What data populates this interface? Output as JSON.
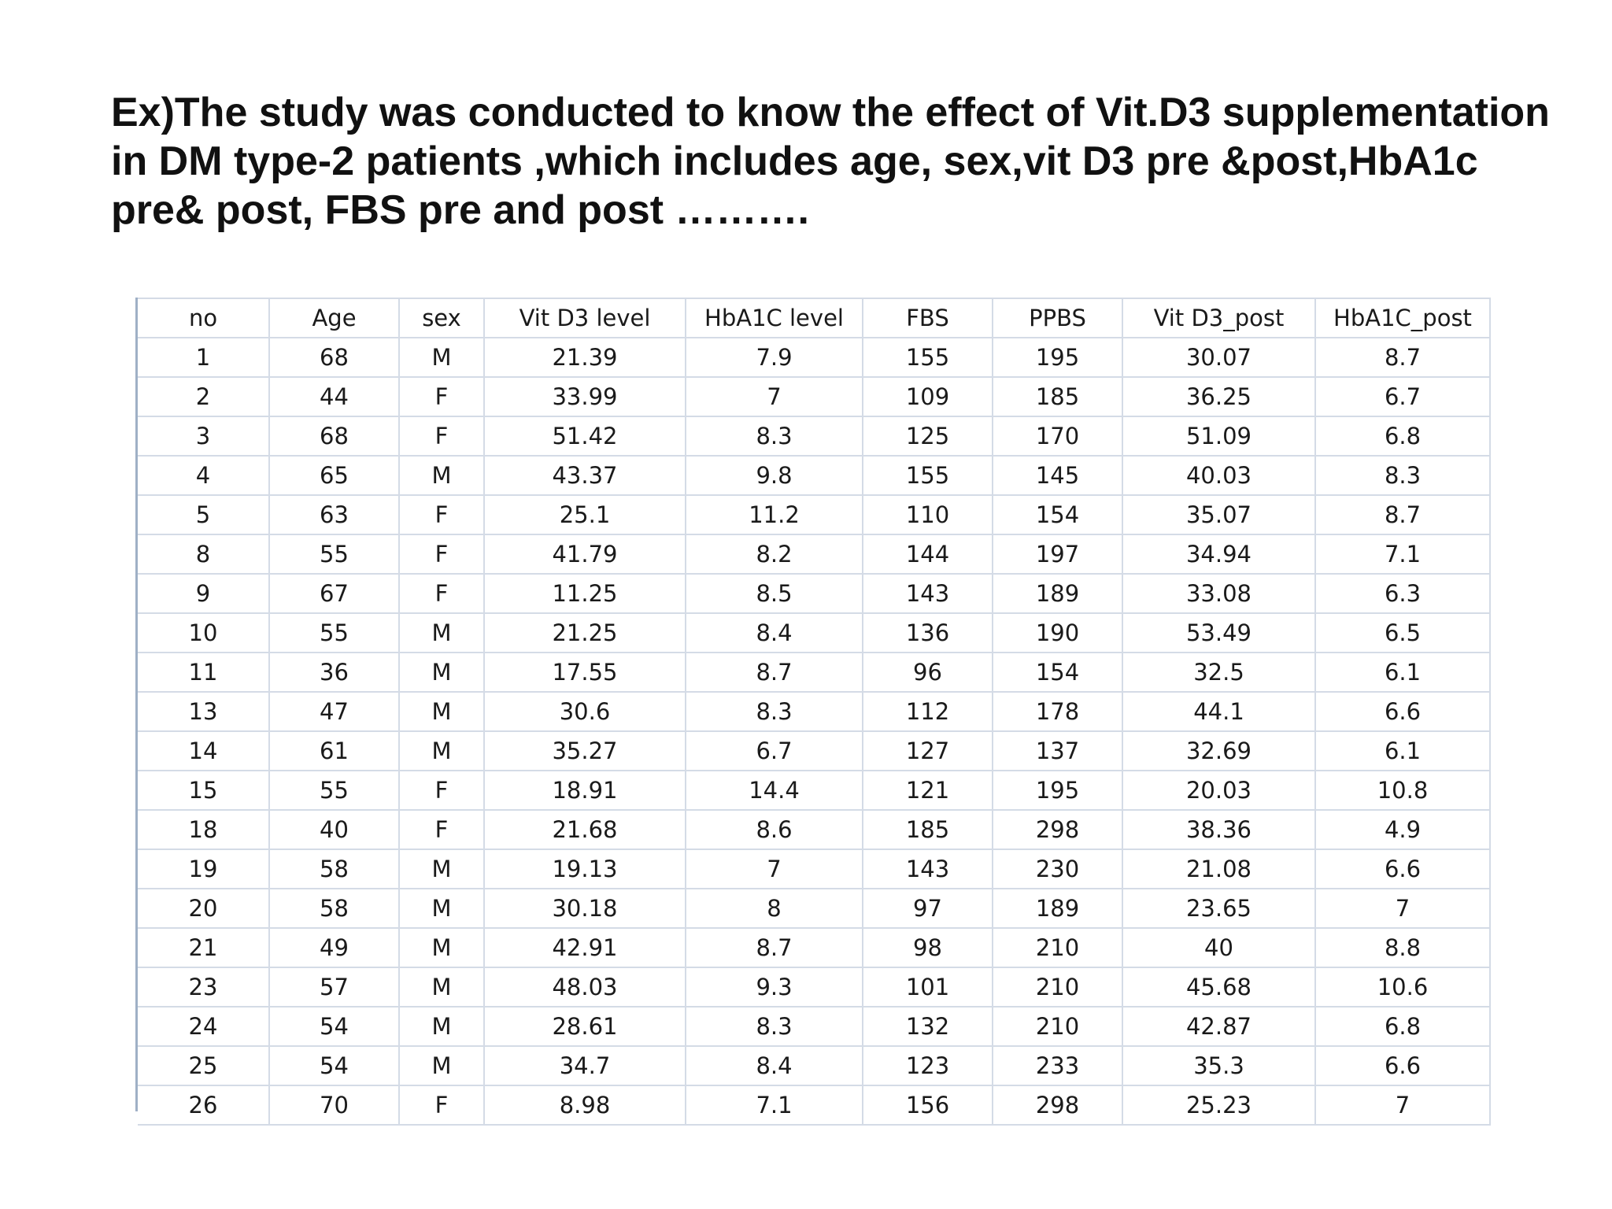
{
  "heading": {
    "line1": "Ex)The study was conducted to know the effect of Vit.D3 supplementation",
    "line2": "in DM type-2 patients ,which includes age, sex,vit D3 pre &post,HbA1c",
    "line3": "pre&  post, FBS pre and post ………."
  },
  "table": {
    "headers": [
      "no",
      "Age",
      "sex",
      "Vit D3 level",
      "HbA1C level",
      "FBS",
      "PPBS",
      "Vit D3_post",
      "HbA1C_post"
    ],
    "rows": [
      [
        "1",
        "68",
        "M",
        "21.39",
        "7.9",
        "155",
        "195",
        "30.07",
        "8.7"
      ],
      [
        "2",
        "44",
        "F",
        "33.99",
        "7",
        "109",
        "185",
        "36.25",
        "6.7"
      ],
      [
        "3",
        "68",
        "F",
        "51.42",
        "8.3",
        "125",
        "170",
        "51.09",
        "6.8"
      ],
      [
        "4",
        "65",
        "M",
        "43.37",
        "9.8",
        "155",
        "145",
        "40.03",
        "8.3"
      ],
      [
        "5",
        "63",
        "F",
        "25.1",
        "11.2",
        "110",
        "154",
        "35.07",
        "8.7"
      ],
      [
        "8",
        "55",
        "F",
        "41.79",
        "8.2",
        "144",
        "197",
        "34.94",
        "7.1"
      ],
      [
        "9",
        "67",
        "F",
        "11.25",
        "8.5",
        "143",
        "189",
        "33.08",
        "6.3"
      ],
      [
        "10",
        "55",
        "M",
        "21.25",
        "8.4",
        "136",
        "190",
        "53.49",
        "6.5"
      ],
      [
        "11",
        "36",
        "M",
        "17.55",
        "8.7",
        "96",
        "154",
        "32.5",
        "6.1"
      ],
      [
        "13",
        "47",
        "M",
        "30.6",
        "8.3",
        "112",
        "178",
        "44.1",
        "6.6"
      ],
      [
        "14",
        "61",
        "M",
        "35.27",
        "6.7",
        "127",
        "137",
        "32.69",
        "6.1"
      ],
      [
        "15",
        "55",
        "F",
        "18.91",
        "14.4",
        "121",
        "195",
        "20.03",
        "10.8"
      ],
      [
        "18",
        "40",
        "F",
        "21.68",
        "8.6",
        "185",
        "298",
        "38.36",
        "4.9"
      ],
      [
        "19",
        "58",
        "M",
        "19.13",
        "7",
        "143",
        "230",
        "21.08",
        "6.6"
      ],
      [
        "20",
        "58",
        "M",
        "30.18",
        "8",
        "97",
        "189",
        "23.65",
        "7"
      ],
      [
        "21",
        "49",
        "M",
        "42.91",
        "8.7",
        "98",
        "210",
        "40",
        "8.8"
      ],
      [
        "23",
        "57",
        "M",
        "48.03",
        "9.3",
        "101",
        "210",
        "45.68",
        "10.6"
      ],
      [
        "24",
        "54",
        "M",
        "28.61",
        "8.3",
        "132",
        "210",
        "42.87",
        "6.8"
      ],
      [
        "25",
        "54",
        "M",
        "34.7",
        "8.4",
        "123",
        "233",
        "35.3",
        "6.6"
      ],
      [
        "26",
        "70",
        "F",
        "8.98",
        "7.1",
        "156",
        "298",
        "25.23",
        "7"
      ]
    ]
  }
}
